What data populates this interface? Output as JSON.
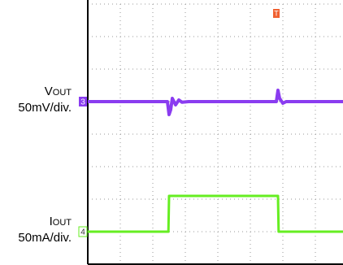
{
  "chart_data": {
    "type": "line",
    "channel_labels": [
      {
        "name": "Vout",
        "scale": "50mV/div.",
        "marker": "3"
      },
      {
        "name": "Iout",
        "scale": "50mA/div.",
        "marker": "4"
      }
    ],
    "trigger_marker": "T",
    "xlim": [
      0,
      7.85
    ],
    "ylim": [
      0,
      8
    ],
    "xticks": [
      0,
      1,
      2,
      3,
      4,
      5,
      6,
      7
    ],
    "yticks": [
      0,
      1,
      2,
      3,
      4,
      5,
      6,
      7,
      8
    ],
    "grid": true,
    "series": [
      {
        "name": "Vout",
        "color": "#8a3cf0",
        "x": [
          0,
          2.45,
          2.5,
          2.55,
          2.6,
          2.7,
          2.8,
          2.9,
          3.1,
          5.8,
          5.85,
          5.9,
          6.0,
          6.1,
          7.85
        ],
        "values": [
          5,
          5,
          4.6,
          4.75,
          5.1,
          4.9,
          5.05,
          4.98,
          5,
          5,
          5.35,
          5.1,
          4.95,
          5,
          5
        ]
      },
      {
        "name": "Iout",
        "color": "#66ee22",
        "x": [
          0,
          2.48,
          2.5,
          5.85,
          5.87,
          7.85
        ],
        "values": [
          1,
          1,
          2.1,
          2.1,
          1,
          1
        ]
      }
    ]
  }
}
